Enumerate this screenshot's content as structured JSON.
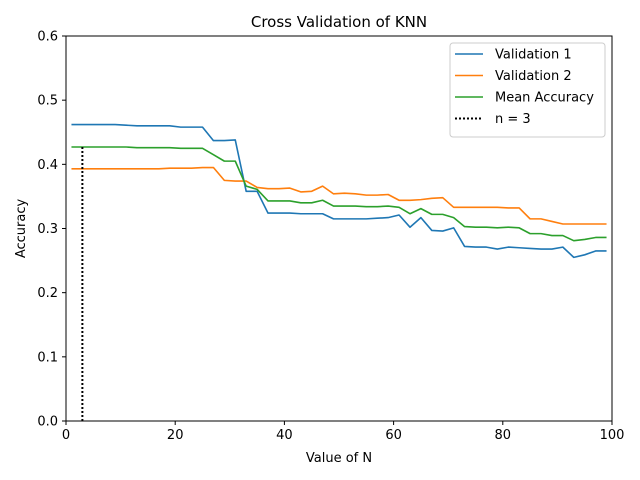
{
  "chart_data": {
    "type": "line",
    "title": "Cross Validation of KNN",
    "xlabel": "Value of N",
    "ylabel": "Accuracy",
    "xlim": [
      0,
      100
    ],
    "ylim": [
      0,
      0.6
    ],
    "xticks": [
      0,
      20,
      40,
      60,
      80,
      100
    ],
    "yticks": [
      0.0,
      0.1,
      0.2,
      0.3,
      0.4,
      0.5,
      0.6
    ],
    "xtick_labels": [
      "0",
      "20",
      "40",
      "60",
      "80",
      "100"
    ],
    "ytick_labels": [
      "0.0",
      "0.1",
      "0.2",
      "0.3",
      "0.4",
      "0.5",
      "0.6"
    ],
    "grid": false,
    "legend_position": "top-right",
    "x": [
      1,
      3,
      5,
      7,
      9,
      11,
      13,
      15,
      17,
      19,
      21,
      23,
      25,
      27,
      29,
      31,
      33,
      35,
      37,
      39,
      41,
      43,
      45,
      47,
      49,
      51,
      53,
      55,
      57,
      59,
      61,
      63,
      65,
      67,
      69,
      71,
      73,
      75,
      77,
      79,
      81,
      83,
      85,
      87,
      89,
      91,
      93,
      95,
      97,
      99
    ],
    "series": [
      {
        "name": "Validation 1",
        "color": "#1f77b4",
        "style": "solid",
        "values": [
          0.462,
          0.462,
          0.462,
          0.462,
          0.462,
          0.461,
          0.46,
          0.46,
          0.46,
          0.46,
          0.458,
          0.458,
          0.458,
          0.437,
          0.437,
          0.438,
          0.358,
          0.358,
          0.324,
          0.324,
          0.324,
          0.323,
          0.323,
          0.323,
          0.315,
          0.315,
          0.315,
          0.315,
          0.316,
          0.317,
          0.321,
          0.302,
          0.317,
          0.297,
          0.296,
          0.301,
          0.272,
          0.271,
          0.271,
          0.268,
          0.271,
          0.27,
          0.269,
          0.268,
          0.268,
          0.271,
          0.255,
          0.259,
          0.265,
          0.265
        ]
      },
      {
        "name": "Validation 2",
        "color": "#ff7f0e",
        "style": "solid",
        "values": [
          0.393,
          0.393,
          0.393,
          0.393,
          0.393,
          0.393,
          0.393,
          0.393,
          0.393,
          0.394,
          0.394,
          0.394,
          0.395,
          0.395,
          0.375,
          0.374,
          0.374,
          0.364,
          0.362,
          0.362,
          0.363,
          0.357,
          0.358,
          0.366,
          0.354,
          0.355,
          0.354,
          0.352,
          0.352,
          0.353,
          0.344,
          0.344,
          0.345,
          0.347,
          0.348,
          0.333,
          0.333,
          0.333,
          0.333,
          0.333,
          0.332,
          0.332,
          0.315,
          0.315,
          0.311,
          0.307,
          0.307,
          0.307,
          0.307,
          0.307
        ]
      },
      {
        "name": "Mean Accuracy",
        "color": "#2ca02c",
        "style": "solid",
        "values": [
          0.427,
          0.427,
          0.427,
          0.427,
          0.427,
          0.427,
          0.426,
          0.426,
          0.426,
          0.426,
          0.425,
          0.425,
          0.425,
          0.415,
          0.405,
          0.405,
          0.366,
          0.361,
          0.343,
          0.343,
          0.343,
          0.34,
          0.34,
          0.344,
          0.335,
          0.335,
          0.335,
          0.334,
          0.334,
          0.335,
          0.333,
          0.323,
          0.331,
          0.322,
          0.322,
          0.317,
          0.303,
          0.302,
          0.302,
          0.301,
          0.302,
          0.301,
          0.292,
          0.292,
          0.289,
          0.289,
          0.281,
          0.283,
          0.286,
          0.286
        ]
      }
    ],
    "vlines": [
      {
        "name": "n = 3",
        "x": 3,
        "ymin": 0,
        "ymax": 0.427,
        "color": "#000000",
        "style": "dotted"
      }
    ]
  }
}
